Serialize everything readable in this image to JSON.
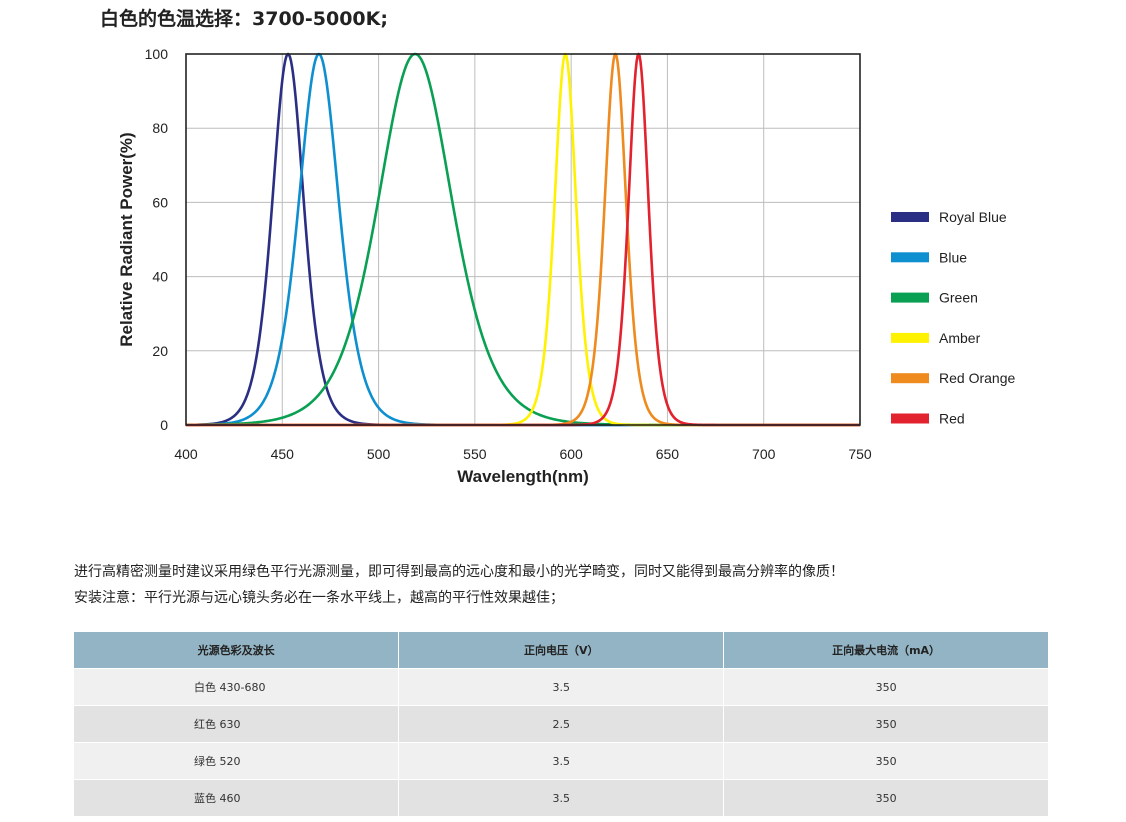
{
  "heading": "白色的色温选择：3700-5000K;",
  "chart_data": {
    "type": "line",
    "title": "",
    "xlabel": "Wavelength(nm)",
    "ylabel": "Relative Radiant Power(%)",
    "xlim": [
      400,
      750
    ],
    "ylim": [
      0,
      100
    ],
    "xticks": [
      400,
      450,
      500,
      550,
      600,
      650,
      700,
      750
    ],
    "yticks": [
      0,
      20,
      40,
      60,
      80,
      100
    ],
    "grid": true,
    "legend_position": "right",
    "series": [
      {
        "name": "Royal Blue",
        "color": "#2b2f84",
        "peak": 453,
        "sigma": 11
      },
      {
        "name": "Blue",
        "color": "#0e8fd0",
        "peak": 469,
        "sigma": 14
      },
      {
        "name": "Green",
        "color": "#0aa053",
        "peak": 519,
        "sigma": 26
      },
      {
        "name": "Amber",
        "color": "#fff200",
        "peak": 597,
        "sigma": 7.5
      },
      {
        "name": "Red Orange",
        "color": "#ef8a1e",
        "peak": 623,
        "sigma": 7.5
      },
      {
        "name": "Red",
        "color": "#e2222e",
        "peak": 635,
        "sigma": 7
      }
    ]
  },
  "description": {
    "line1": "进行高精密测量时建议采用绿色平行光源测量，即可得到最高的远心度和最小的光学畸变，同时又能得到最高分辨率的像质！",
    "line2": "安装注意：平行光源与远心镜头务必在一条水平线上，越高的平行性效果越佳；"
  },
  "table": {
    "headers": [
      "光源色彩及波长",
      "正向电压（V）",
      "正向最大电流（mA）"
    ],
    "rows": [
      [
        "白色 430-680",
        "3.5",
        "350"
      ],
      [
        "红色 630",
        "2.5",
        "350"
      ],
      [
        "绿色 520",
        "3.5",
        "350"
      ],
      [
        "蓝色 460",
        "3.5",
        "350"
      ]
    ]
  }
}
